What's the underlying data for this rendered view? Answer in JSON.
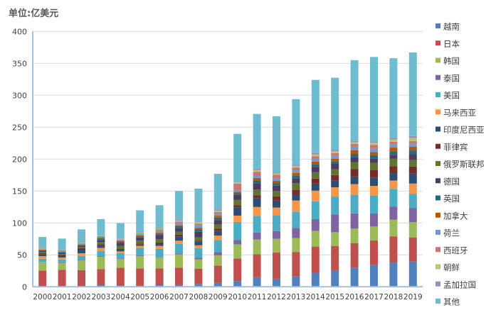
{
  "chart_data": {
    "type": "bar",
    "stacked": true,
    "title": "单位:亿美元",
    "xlabel": "",
    "ylabel": "",
    "ylim": [
      0,
      400
    ],
    "yticks": [
      0,
      50,
      100,
      150,
      200,
      250,
      300,
      350,
      400
    ],
    "grid": true,
    "legend_position": "right",
    "categories": [
      "2000",
      "2001",
      "2002",
      "2003",
      "2004",
      "2005",
      "2006",
      "2007",
      "2008",
      "2009",
      "2010",
      "2011",
      "2012",
      "2013",
      "2014",
      "2015",
      "2016",
      "2017",
      "2018",
      "2019"
    ],
    "series": [
      {
        "name": "越南",
        "color": "#4F81BD",
        "values": [
          0.5,
          0.5,
          0.7,
          2.6,
          1.9,
          1.5,
          2.6,
          2.6,
          4.4,
          6.3,
          9,
          15,
          12.6,
          16.3,
          22,
          26,
          30,
          34,
          38,
          39.6
        ]
      },
      {
        "name": "日本",
        "color": "#C0504D",
        "values": [
          25,
          26.2,
          25.2,
          25,
          27.8,
          27.4,
          26.3,
          27.4,
          24,
          27,
          35.5,
          36,
          41,
          38,
          41,
          38,
          38.5,
          38.5,
          41,
          37.8
        ]
      },
      {
        "name": "韩国",
        "color": "#9BBB59",
        "values": [
          13,
          10.7,
          15.2,
          19.3,
          14,
          19.3,
          16.7,
          20.7,
          14.4,
          16,
          22,
          23,
          21.5,
          22,
          24.4,
          21.5,
          22.6,
          21.9,
          26,
          24
        ]
      },
      {
        "name": "泰国",
        "color": "#8064A2",
        "values": [
          0.3,
          0.7,
          1.1,
          1.1,
          0.7,
          1.1,
          0.7,
          1.5,
          2.6,
          5,
          7,
          11,
          12,
          16,
          18.5,
          28,
          24,
          20.4,
          20.7,
          22.2
        ]
      },
      {
        "name": "美国",
        "color": "#4BACC6",
        "values": [
          5.2,
          4.8,
          6.3,
          7.8,
          8.5,
          11.9,
          13.3,
          15.2,
          15.2,
          19,
          28,
          26,
          25,
          25.5,
          28,
          27.4,
          29,
          28.5,
          27.8,
          22.2
        ]
      },
      {
        "name": "马来西亚",
        "color": "#F79646",
        "values": [
          4,
          3,
          4,
          5.2,
          2.6,
          3,
          4.4,
          4.8,
          4.4,
          7,
          10,
          14,
          12,
          17.4,
          16.7,
          15,
          16.7,
          14.8,
          13,
          15.9
        ]
      },
      {
        "name": "印度尼西亚",
        "color": "#2C4D75",
        "values": [
          2.6,
          2.2,
          5.6,
          3.7,
          2.6,
          1.9,
          3,
          6.7,
          6.3,
          7,
          13,
          14,
          11,
          9,
          11,
          10.7,
          11.9,
          12.6,
          11.5,
          15.6
        ]
      },
      {
        "name": "菲律宾",
        "color": "#772C2A",
        "values": [
          1.9,
          1.9,
          2.2,
          1.9,
          1.1,
          1.5,
          2.2,
          2.6,
          0.7,
          4,
          3,
          4.5,
          6.7,
          8,
          7.8,
          8.5,
          11.9,
          11.9,
          11,
          11.1
        ]
      },
      {
        "name": "俄罗斯联邦",
        "color": "#5F7530",
        "values": [
          1.9,
          1.1,
          1.9,
          3.7,
          4.8,
          4.8,
          5.2,
          4.8,
          5.6,
          6,
          8.5,
          9,
          8.5,
          10,
          10,
          9,
          10.7,
          11.5,
          11.5,
          10
        ]
      },
      {
        "name": "德国",
        "color": "#4D3B62",
        "values": [
          1.9,
          1.9,
          1.9,
          3,
          4.8,
          4.8,
          5.9,
          5.9,
          8.5,
          7,
          8,
          9,
          8,
          7.8,
          8.5,
          8.5,
          8,
          7,
          6.3,
          9.6
        ]
      },
      {
        "name": "英国",
        "color": "#276A7C",
        "values": [
          1,
          1.1,
          1.5,
          2.2,
          1.5,
          1.5,
          2.2,
          3,
          3.7,
          4,
          2.5,
          5,
          3.7,
          4.4,
          4.4,
          3.7,
          4.8,
          5.2,
          5.6,
          5.6
        ]
      },
      {
        "name": "加拿大",
        "color": "#B65708",
        "values": [
          1,
          0.7,
          0.7,
          1.5,
          1.9,
          1.9,
          2.2,
          1.5,
          2.2,
          3,
          2.5,
          4,
          4,
          3.7,
          3.7,
          4.4,
          5.6,
          4.8,
          5.6,
          5.6
        ]
      },
      {
        "name": "荷兰",
        "color": "#729ACA",
        "values": [
          0.7,
          1.1,
          1.1,
          1.1,
          1.1,
          1.9,
          3,
          3,
          4,
          2.5,
          3.5,
          3.7,
          4.4,
          4.4,
          4.8,
          4.4,
          5.6,
          5.6,
          4.8,
          4.8
        ]
      },
      {
        "name": "西班牙",
        "color": "#CD7371",
        "values": [
          0.7,
          1.1,
          1.1,
          1.1,
          0.7,
          1.1,
          2.2,
          2.2,
          3,
          3.5,
          9,
          6,
          5,
          4.4,
          3.7,
          4.4,
          4.4,
          5.6,
          4.4,
          4.4
        ]
      },
      {
        "name": "朝鲜",
        "color": "#AFC97A",
        "values": [
          1,
          0.7,
          0.7,
          1.1,
          1.1,
          1.1,
          1.5,
          1.9,
          2.2,
          2,
          2,
          2.6,
          2.2,
          2.2,
          2.6,
          3,
          2.6,
          3.3,
          3.7,
          4.8
        ]
      },
      {
        "name": "孟加拉国",
        "color": "#A08BB7",
        "values": [
          0.7,
          1.1,
          0.7,
          0.7,
          0.7,
          1.1,
          1.5,
          1.9,
          1.1,
          2,
          1,
          2,
          1.5,
          1.9,
          2.2,
          2.2,
          2.2,
          1.9,
          2.6,
          3
        ]
      },
      {
        "name": "其他",
        "color": "#6FBCD1",
        "values": [
          16.7,
          16.7,
          20,
          25,
          24,
          34,
          34.8,
          44.4,
          51.5,
          55.6,
          75,
          86,
          88,
          103,
          114.7,
          112.8,
          126.5,
          132.5,
          124.5,
          130.8
        ]
      }
    ]
  }
}
